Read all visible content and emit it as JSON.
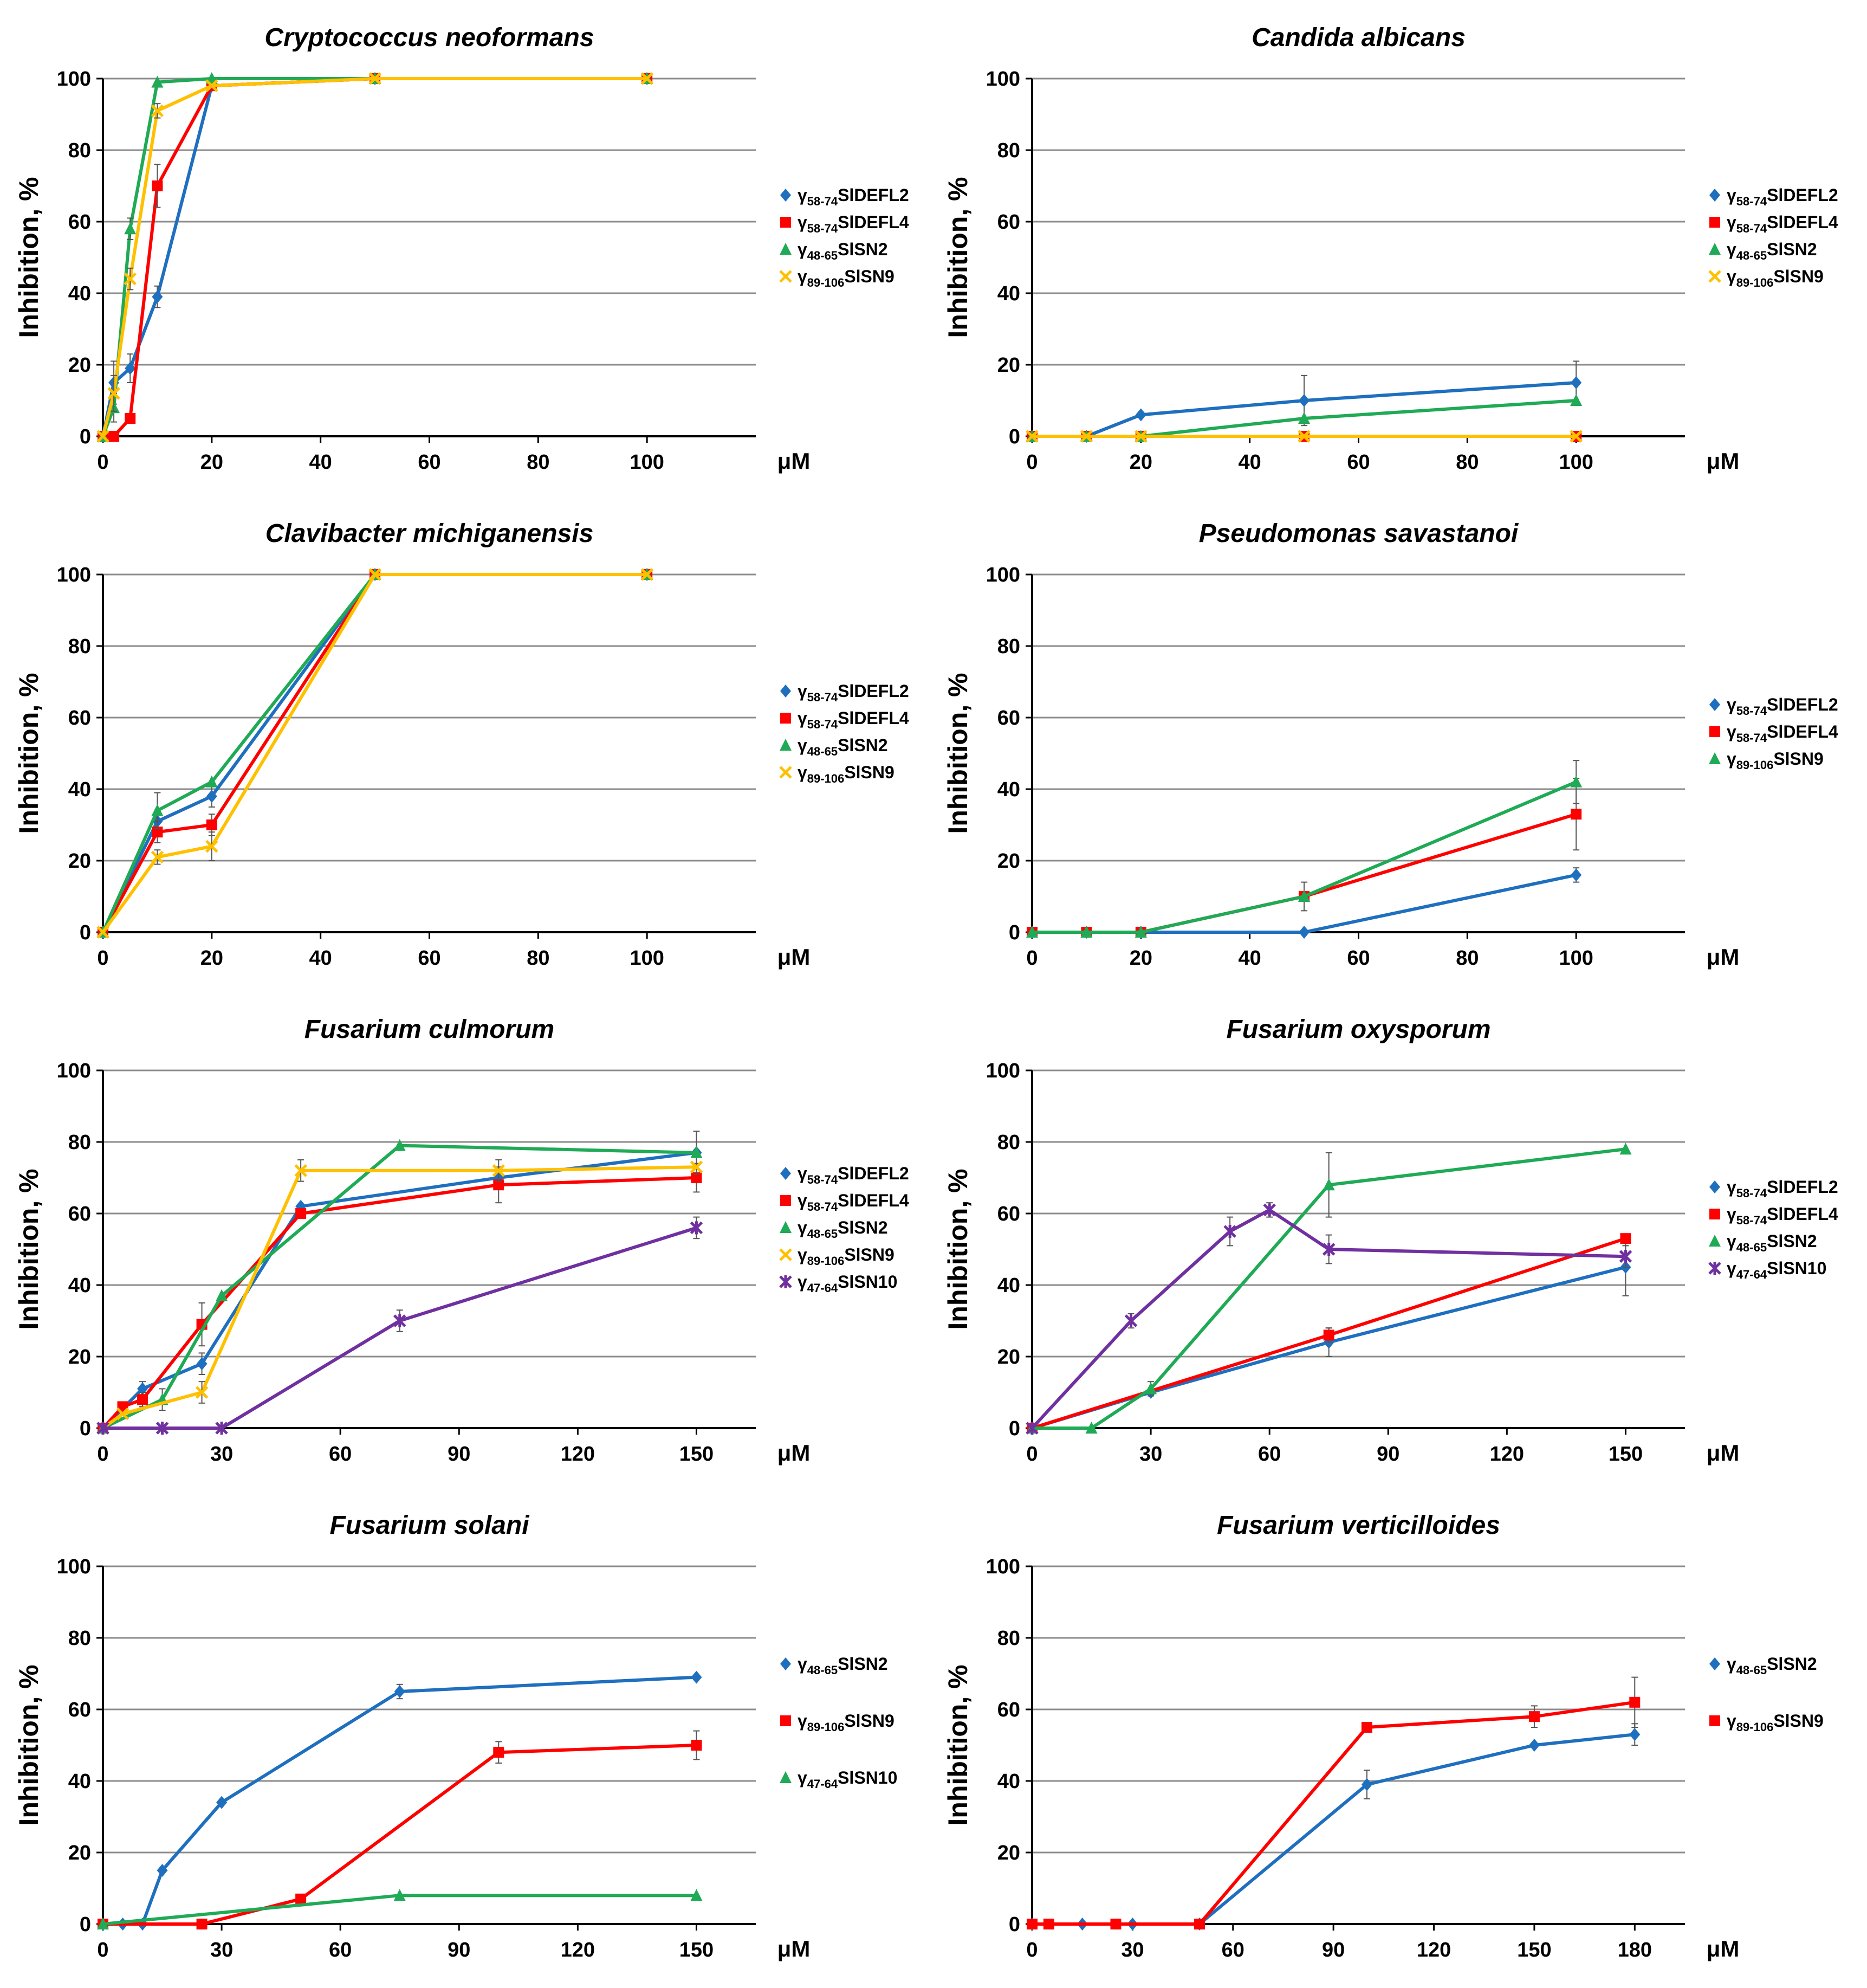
{
  "figure": {
    "y_axis_label": "Inhibition, %",
    "x_unit": "μM"
  },
  "colors": {
    "blue": "#1f6fbf",
    "red": "#ff0000",
    "green": "#1faa55",
    "yellow": "#ffc000",
    "purple": "#7030a0",
    "grid": "#8c8c8c",
    "axis": "#000000"
  },
  "chart_data": [
    {
      "type": "line",
      "title": "Cryptococcus neoformans",
      "xlabel": "μM",
      "ylabel": "Inhibition, %",
      "xlim": [
        0,
        120
      ],
      "ylim": [
        0,
        100
      ],
      "xticks": [
        0,
        20,
        40,
        60,
        80,
        100
      ],
      "yticks": [
        0,
        20,
        40,
        60,
        80,
        100
      ],
      "grid": true,
      "legend_position": "right",
      "series": [
        {
          "prefix": "γ",
          "sub": "58-74",
          "suffix": "SlDEFL2",
          "color": "blue",
          "marker": "diamond",
          "x": [
            0,
            2,
            5,
            10,
            20,
            50,
            100
          ],
          "y": [
            0,
            15,
            19,
            39,
            98,
            100,
            100
          ],
          "err": [
            0,
            6,
            4,
            3,
            0,
            0,
            0
          ]
        },
        {
          "prefix": "γ",
          "sub": "58-74",
          "suffix": "SlDEFL4",
          "color": "red",
          "marker": "square",
          "x": [
            0,
            2,
            5,
            10,
            20,
            50,
            100
          ],
          "y": [
            0,
            0,
            5,
            70,
            98,
            100,
            100
          ],
          "err": [
            0,
            0,
            0,
            6,
            0,
            0,
            0
          ]
        },
        {
          "prefix": "γ",
          "sub": "48-65",
          "suffix": "SlSN2",
          "color": "green",
          "marker": "triangle",
          "x": [
            0,
            2,
            5,
            10,
            20,
            50,
            100
          ],
          "y": [
            0,
            8,
            58,
            99,
            100,
            100,
            100
          ],
          "err": [
            0,
            4,
            3,
            0,
            0,
            0,
            0
          ]
        },
        {
          "prefix": "γ",
          "sub": "89-106",
          "suffix": "SlSN9",
          "color": "yellow",
          "marker": "x",
          "x": [
            0,
            2,
            5,
            10,
            20,
            50,
            100
          ],
          "y": [
            0,
            12,
            44,
            91,
            98,
            100,
            100
          ],
          "err": [
            0,
            5,
            3,
            2,
            0,
            0,
            0
          ]
        }
      ]
    },
    {
      "type": "line",
      "title": "Candida albicans",
      "xlabel": "μM",
      "ylabel": "Inhibition, %",
      "xlim": [
        0,
        120
      ],
      "ylim": [
        0,
        100
      ],
      "xticks": [
        0,
        20,
        40,
        60,
        80,
        100
      ],
      "yticks": [
        0,
        20,
        40,
        60,
        80,
        100
      ],
      "grid": true,
      "legend_position": "right",
      "series": [
        {
          "prefix": "γ",
          "sub": "58-74",
          "suffix": "SlDEFL2",
          "color": "blue",
          "marker": "diamond",
          "x": [
            0,
            10,
            20,
            50,
            100
          ],
          "y": [
            0,
            0,
            6,
            10,
            15
          ],
          "err": [
            0,
            0,
            0,
            7,
            6
          ]
        },
        {
          "prefix": "γ",
          "sub": "58-74",
          "suffix": "SlDEFL4",
          "color": "red",
          "marker": "square",
          "x": [
            0,
            10,
            20,
            50,
            100
          ],
          "y": [
            0,
            0,
            0,
            0,
            0
          ],
          "err": [
            0,
            0,
            0,
            0,
            0
          ]
        },
        {
          "prefix": "γ",
          "sub": "48-65",
          "suffix": "SlSN2",
          "color": "green",
          "marker": "triangle",
          "x": [
            0,
            10,
            20,
            50,
            100
          ],
          "y": [
            0,
            0,
            0,
            5,
            10
          ],
          "err": [
            0,
            0,
            0,
            0,
            0
          ]
        },
        {
          "prefix": "γ",
          "sub": "89-106",
          "suffix": "SlSN9",
          "color": "yellow",
          "marker": "x",
          "x": [
            0,
            10,
            20,
            50,
            100
          ],
          "y": [
            0,
            0,
            0,
            0,
            0
          ],
          "err": [
            0,
            0,
            0,
            0,
            0
          ]
        }
      ]
    },
    {
      "type": "line",
      "title": "Clavibacter michiganensis",
      "xlabel": "μM",
      "ylabel": "Inhibition, %",
      "xlim": [
        0,
        120
      ],
      "ylim": [
        0,
        100
      ],
      "xticks": [
        0,
        20,
        40,
        60,
        80,
        100
      ],
      "yticks": [
        0,
        20,
        40,
        60,
        80,
        100
      ],
      "grid": true,
      "legend_position": "right",
      "series": [
        {
          "prefix": "γ",
          "sub": "58-74",
          "suffix": "SlDEFL2",
          "color": "blue",
          "marker": "diamond",
          "x": [
            0,
            10,
            20,
            50,
            100
          ],
          "y": [
            0,
            31,
            38,
            100,
            100
          ],
          "err": [
            0,
            3,
            3,
            0,
            0
          ]
        },
        {
          "prefix": "γ",
          "sub": "58-74",
          "suffix": "SlDEFL4",
          "color": "red",
          "marker": "square",
          "x": [
            0,
            10,
            20,
            50,
            100
          ],
          "y": [
            0,
            28,
            30,
            100,
            100
          ],
          "err": [
            0,
            3,
            3,
            0,
            0
          ]
        },
        {
          "prefix": "γ",
          "sub": "48-65",
          "suffix": "SlSN2",
          "color": "green",
          "marker": "triangle",
          "x": [
            0,
            10,
            20,
            50,
            100
          ],
          "y": [
            0,
            34,
            42,
            100,
            100
          ],
          "err": [
            0,
            5,
            0,
            0,
            0
          ]
        },
        {
          "prefix": "γ",
          "sub": "89-106",
          "suffix": "SlSN9",
          "color": "yellow",
          "marker": "x",
          "x": [
            0,
            10,
            20,
            50,
            100
          ],
          "y": [
            0,
            21,
            24,
            100,
            100
          ],
          "err": [
            0,
            2,
            4,
            0,
            0
          ]
        }
      ]
    },
    {
      "type": "line",
      "title": "Pseudomonas savastanoi",
      "xlabel": "μM",
      "ylabel": "Inhibition, %",
      "xlim": [
        0,
        120
      ],
      "ylim": [
        0,
        100
      ],
      "xticks": [
        0,
        20,
        40,
        60,
        80,
        100
      ],
      "yticks": [
        0,
        20,
        40,
        60,
        80,
        100
      ],
      "grid": true,
      "legend_position": "right",
      "series": [
        {
          "prefix": "γ",
          "sub": "58-74",
          "suffix": "SlDEFL2",
          "color": "blue",
          "marker": "diamond",
          "x": [
            0,
            10,
            20,
            50,
            100
          ],
          "y": [
            0,
            0,
            0,
            0,
            16
          ],
          "err": [
            0,
            0,
            0,
            0,
            2
          ]
        },
        {
          "prefix": "γ",
          "sub": "58-74",
          "suffix": "SlDEFL4",
          "color": "red",
          "marker": "square",
          "x": [
            0,
            10,
            20,
            50,
            100
          ],
          "y": [
            0,
            0,
            0,
            10,
            33
          ],
          "err": [
            0,
            0,
            0,
            4,
            10
          ]
        },
        {
          "prefix": "γ",
          "sub": "89-106",
          "suffix": "SlSN9",
          "color": "green",
          "marker": "triangle",
          "x": [
            0,
            10,
            20,
            50,
            100
          ],
          "y": [
            0,
            0,
            0,
            10,
            42
          ],
          "err": [
            0,
            0,
            0,
            0,
            6
          ]
        }
      ]
    },
    {
      "type": "line",
      "title": "Fusarium culmorum",
      "xlabel": "μM",
      "ylabel": "Inhibition, %",
      "xlim": [
        0,
        165
      ],
      "ylim": [
        0,
        100
      ],
      "xticks": [
        0,
        30,
        60,
        90,
        120,
        150
      ],
      "yticks": [
        0,
        20,
        40,
        60,
        80,
        100
      ],
      "grid": true,
      "legend_position": "right",
      "series": [
        {
          "prefix": "γ",
          "sub": "58-74",
          "suffix": "SlDEFL2",
          "color": "blue",
          "marker": "diamond",
          "x": [
            0,
            10,
            25,
            50,
            100,
            150
          ],
          "y": [
            0,
            11,
            18,
            62,
            70,
            77
          ],
          "err": [
            0,
            2,
            3,
            0,
            0,
            0
          ]
        },
        {
          "prefix": "γ",
          "sub": "58-74",
          "suffix": "SlDEFL4",
          "color": "red",
          "marker": "square",
          "x": [
            0,
            5,
            10,
            25,
            50,
            100,
            150
          ],
          "y": [
            0,
            6,
            8,
            29,
            60,
            68,
            70
          ],
          "err": [
            0,
            0,
            2,
            6,
            0,
            5,
            4
          ]
        },
        {
          "prefix": "γ",
          "sub": "48-65",
          "suffix": "SlSN2",
          "color": "green",
          "marker": "triangle",
          "x": [
            0,
            15,
            30,
            75,
            150
          ],
          "y": [
            0,
            8,
            37,
            79,
            77
          ],
          "err": [
            0,
            3,
            0,
            0,
            6
          ]
        },
        {
          "prefix": "γ",
          "sub": "89-106",
          "suffix": "SlSN9",
          "color": "yellow",
          "marker": "x",
          "x": [
            0,
            5,
            25,
            50,
            100,
            150
          ],
          "y": [
            0,
            4,
            10,
            72,
            72,
            73
          ],
          "err": [
            0,
            0,
            3,
            3,
            3,
            0
          ]
        },
        {
          "prefix": "γ",
          "sub": "47-64",
          "suffix": "SlSN10",
          "color": "purple",
          "marker": "star",
          "x": [
            0,
            15,
            30,
            75,
            150
          ],
          "y": [
            0,
            0,
            0,
            30,
            56
          ],
          "err": [
            0,
            0,
            0,
            3,
            3
          ]
        }
      ]
    },
    {
      "type": "line",
      "title": "Fusarium oxysporum",
      "xlabel": "μM",
      "ylabel": "Inhibition, %",
      "xlim": [
        0,
        165
      ],
      "ylim": [
        0,
        100
      ],
      "xticks": [
        0,
        30,
        60,
        90,
        120,
        150
      ],
      "yticks": [
        0,
        20,
        40,
        60,
        80,
        100
      ],
      "grid": true,
      "legend_position": "right",
      "series": [
        {
          "prefix": "γ",
          "sub": "58-74",
          "suffix": "SlDEFL2",
          "color": "blue",
          "marker": "diamond",
          "x": [
            0,
            30,
            75,
            150
          ],
          "y": [
            0,
            10,
            24,
            45
          ],
          "err": [
            0,
            0,
            4,
            8
          ]
        },
        {
          "prefix": "γ",
          "sub": "58-74",
          "suffix": "SlDEFL4",
          "color": "red",
          "marker": "square",
          "x": [
            0,
            75,
            150
          ],
          "y": [
            0,
            26,
            53
          ],
          "err": [
            0,
            2,
            0
          ]
        },
        {
          "prefix": "γ",
          "sub": "48-65",
          "suffix": "SlSN2",
          "color": "green",
          "marker": "triangle",
          "x": [
            0,
            15,
            30,
            75,
            150
          ],
          "y": [
            0,
            0,
            11,
            68,
            78
          ],
          "err": [
            0,
            0,
            2,
            9,
            0
          ]
        },
        {
          "prefix": "γ",
          "sub": "47-64",
          "suffix": "SlSN10",
          "color": "purple",
          "marker": "star",
          "x": [
            0,
            25,
            50,
            60,
            75,
            150
          ],
          "y": [
            0,
            30,
            55,
            61,
            50,
            48
          ],
          "err": [
            0,
            2,
            4,
            2,
            4,
            3
          ]
        }
      ]
    },
    {
      "type": "line",
      "title": "Fusarium solani",
      "xlabel": "μM",
      "ylabel": "Inhibition, %",
      "xlim": [
        0,
        165
      ],
      "ylim": [
        0,
        100
      ],
      "xticks": [
        0,
        30,
        60,
        90,
        120,
        150
      ],
      "yticks": [
        0,
        20,
        40,
        60,
        80,
        100
      ],
      "grid": true,
      "legend_position": "right",
      "series": [
        {
          "prefix": "γ",
          "sub": "48-65",
          "suffix": "SlSN2",
          "color": "blue",
          "marker": "diamond",
          "x": [
            0,
            5,
            10,
            15,
            30,
            75,
            150
          ],
          "y": [
            0,
            0,
            0,
            15,
            34,
            65,
            69
          ],
          "err": [
            0,
            0,
            0,
            0,
            0,
            2,
            0
          ]
        },
        {
          "prefix": "γ",
          "sub": "89-106",
          "suffix": "SlSN9",
          "color": "red",
          "marker": "square",
          "x": [
            0,
            25,
            50,
            100,
            150
          ],
          "y": [
            0,
            0,
            7,
            48,
            50
          ],
          "err": [
            0,
            0,
            0,
            3,
            4
          ]
        },
        {
          "prefix": "γ",
          "sub": "47-64",
          "suffix": "SlSN10",
          "color": "green",
          "marker": "triangle",
          "x": [
            0,
            75,
            150
          ],
          "y": [
            0,
            8,
            8
          ],
          "err": [
            0,
            0,
            0
          ]
        }
      ]
    },
    {
      "type": "line",
      "title": "Fusarium verticilloides",
      "xlabel": "μM",
      "ylabel": "Inhibition, %",
      "xlim": [
        0,
        195
      ],
      "ylim": [
        0,
        100
      ],
      "xticks": [
        0,
        30,
        60,
        90,
        120,
        150,
        180
      ],
      "yticks": [
        0,
        20,
        40,
        60,
        80,
        100
      ],
      "grid": true,
      "legend_position": "right",
      "series": [
        {
          "prefix": "γ",
          "sub": "48-65",
          "suffix": "SlSN2",
          "color": "blue",
          "marker": "diamond",
          "x": [
            0,
            15,
            30,
            50,
            100,
            150,
            180
          ],
          "y": [
            0,
            0,
            0,
            0,
            39,
            50,
            53
          ],
          "err": [
            0,
            0,
            0,
            0,
            4,
            0,
            3
          ]
        },
        {
          "prefix": "γ",
          "sub": "89-106",
          "suffix": "SlSN9",
          "color": "red",
          "marker": "square",
          "x": [
            0,
            5,
            25,
            50,
            100,
            150,
            180
          ],
          "y": [
            0,
            0,
            0,
            0,
            55,
            58,
            62
          ],
          "err": [
            0,
            0,
            0,
            0,
            0,
            3,
            7
          ]
        }
      ]
    }
  ]
}
